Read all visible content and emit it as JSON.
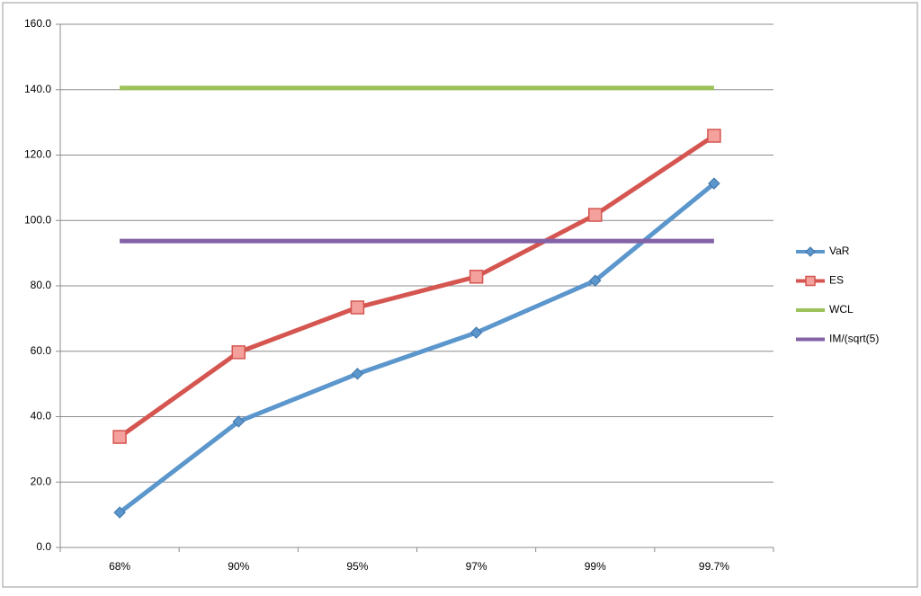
{
  "chart_data": {
    "type": "line",
    "categories": [
      "68%",
      "90%",
      "95%",
      "97%",
      "99%",
      "99.7%"
    ],
    "series": [
      {
        "name": "VaR",
        "color": "#5b96cc",
        "marker": "diamond",
        "values": [
          10.7,
          38.5,
          53.1,
          65.7,
          81.6,
          111.3
        ]
      },
      {
        "name": "ES",
        "color": "#d55650",
        "marker": "square",
        "values": [
          33.8,
          59.7,
          73.4,
          82.8,
          101.7,
          125.9
        ]
      },
      {
        "name": "WCL",
        "color": "#9bc25b",
        "marker": "none",
        "values": [
          140.5,
          140.5,
          140.5,
          140.5,
          140.5,
          140.5
        ]
      },
      {
        "name": "IM/(sqrt(5)",
        "color": "#8462a6",
        "marker": "none",
        "values": [
          93.7,
          93.7,
          93.7,
          93.7,
          93.7,
          93.7
        ]
      }
    ],
    "ylim": [
      0,
      160
    ],
    "yticks": [
      {
        "value": 0,
        "label": "0.0"
      },
      {
        "value": 20,
        "label": "20.0"
      },
      {
        "value": 40,
        "label": "40.0"
      },
      {
        "value": 60,
        "label": "60.0"
      },
      {
        "value": 80,
        "label": "80.0"
      },
      {
        "value": 100,
        "label": "100.0"
      },
      {
        "value": 120,
        "label": "120.0"
      },
      {
        "value": 140,
        "label": "140.0"
      },
      {
        "value": 160,
        "label": "160.0"
      }
    ],
    "grid": true,
    "legend": "right"
  }
}
